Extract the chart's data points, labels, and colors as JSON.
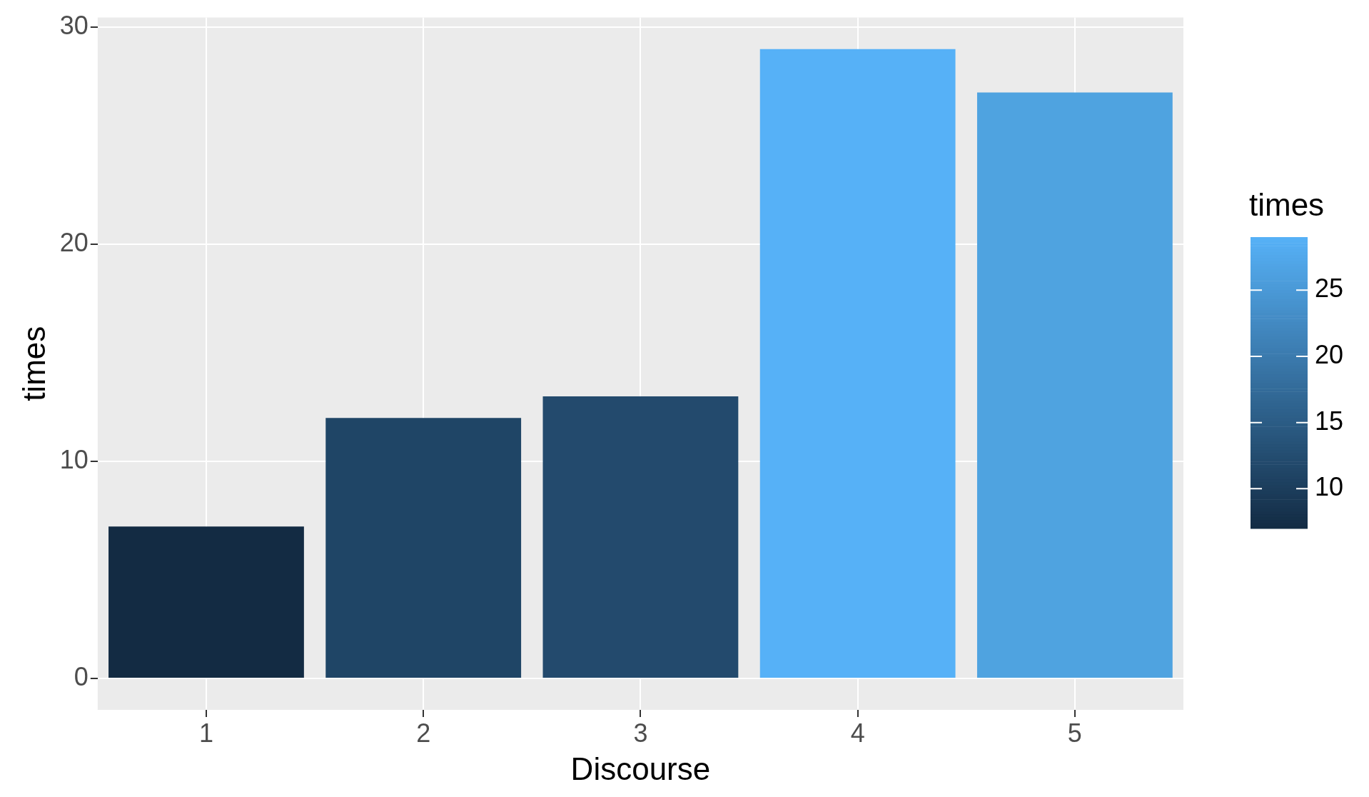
{
  "chart_data": {
    "type": "bar",
    "xlabel": "Discourse",
    "ylabel": "times",
    "clabel": "times",
    "categories": [
      "1",
      "2",
      "3",
      "4",
      "5"
    ],
    "values": [
      7,
      12,
      13,
      29,
      27
    ],
    "colors": [
      "#132b43",
      "#1f4566",
      "#234a6d",
      "#56b1f7",
      "#4fa3e0"
    ],
    "ylim": [
      -1.45,
      30.45
    ],
    "yticks": [
      0,
      10,
      20,
      30
    ],
    "clim": [
      7,
      29
    ],
    "cticks": [
      10,
      15,
      20,
      25
    ],
    "grid": true,
    "legend": false
  }
}
